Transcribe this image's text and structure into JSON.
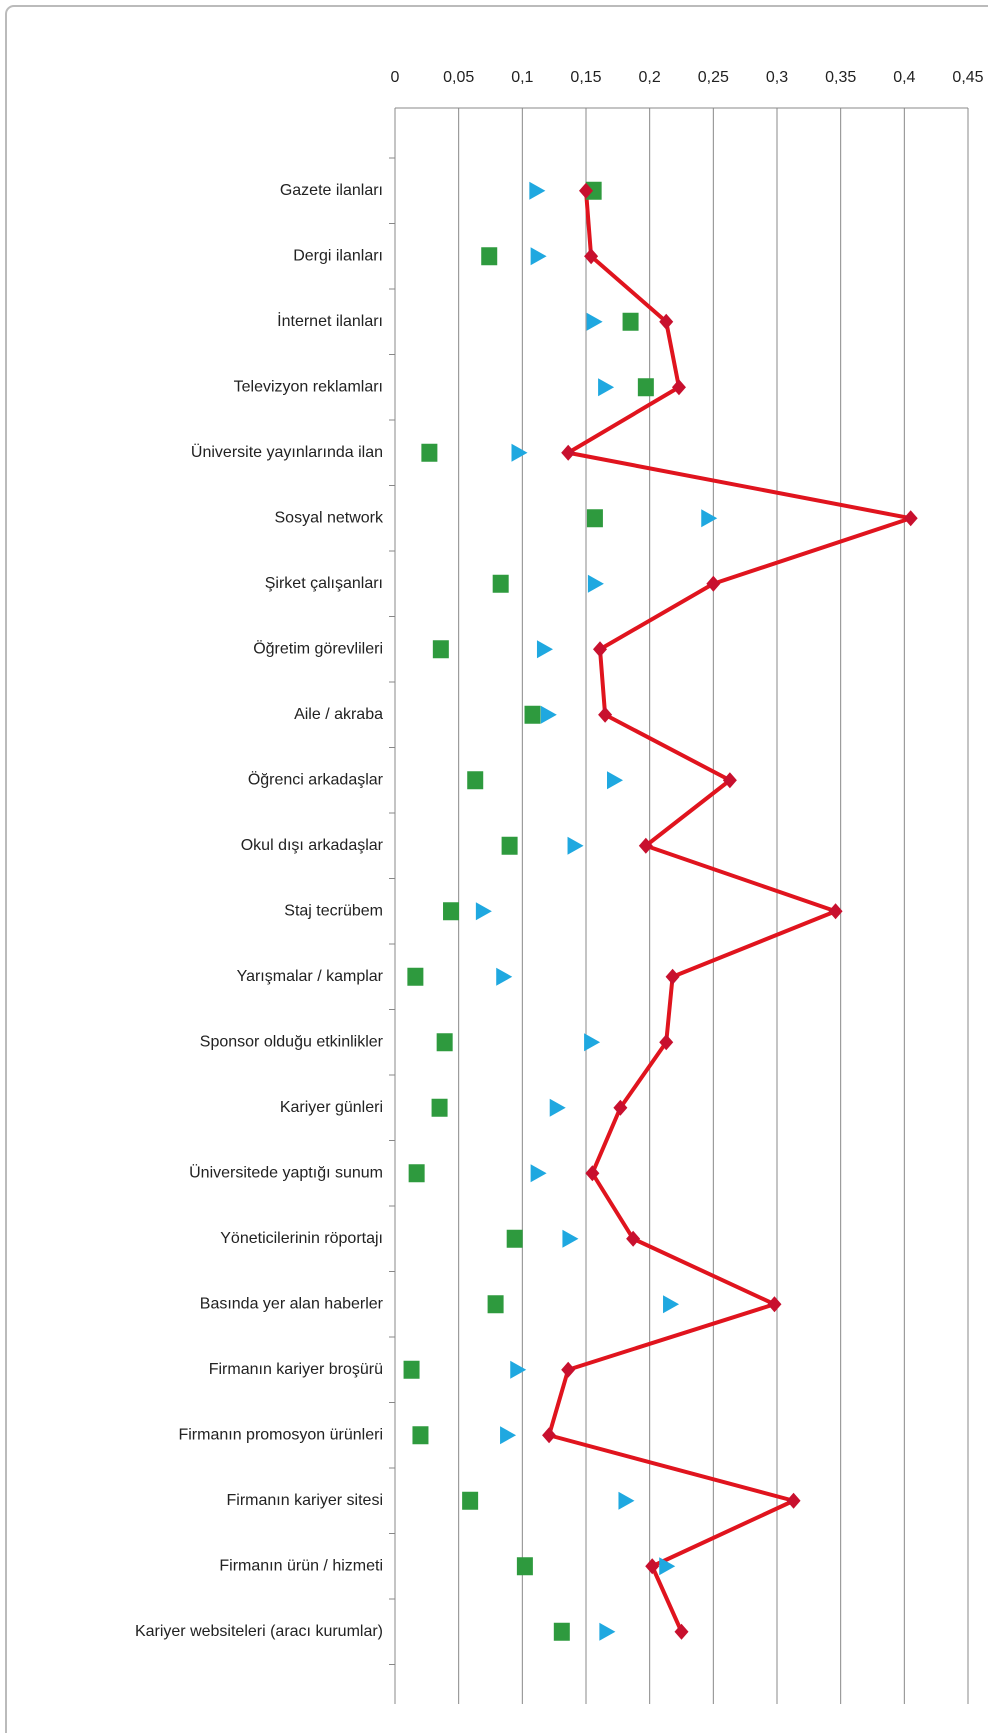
{
  "chart_data": {
    "type": "line-dot",
    "categories": [
      "Gazete ilanları",
      "Dergi ilanları",
      "İnternet ilanları",
      "Televizyon reklamları",
      "Üniversite yayınlarında ilan",
      "Sosyal network",
      "Şirket çalışanları",
      "Öğretim görevlileri",
      "Aile / akraba",
      "Öğrenci arkadaşlar",
      "Okul dışı arkadaşlar",
      "Staj tecrübem",
      "Yarışmalar / kamplar",
      "Sponsor olduğu etkinlikler",
      "Kariyer günleri",
      "Üniversitede yaptığı sunum",
      "Yöneticilerinin röportajı",
      "Basında yer alan haberler",
      "Firmanın kariyer broşürü",
      "Firmanın promosyon ürünleri",
      "Firmanın kariyer sitesi",
      "Firmanın ürün / hizmeti",
      "Kariyer websiteleri (aracı kurumlar)"
    ],
    "series": [
      {
        "color": "#e0141e",
        "marker": "diamond",
        "line": true,
        "values": [
          0.15,
          0.154,
          0.213,
          0.223,
          0.136,
          0.405,
          0.25,
          0.161,
          0.165,
          0.263,
          0.197,
          0.346,
          0.218,
          0.213,
          0.177,
          0.155,
          0.187,
          0.298,
          0.136,
          0.121,
          0.313,
          0.202,
          0.225
        ]
      },
      {
        "color": "#2e9a3e",
        "marker": "square",
        "line": false,
        "values": [
          0.156,
          0.074,
          0.185,
          0.197,
          0.027,
          0.157,
          0.083,
          0.036,
          0.108,
          0.063,
          0.09,
          0.044,
          0.016,
          0.039,
          0.035,
          0.017,
          0.094,
          0.079,
          0.013,
          0.02,
          0.059,
          0.102,
          0.131
        ]
      },
      {
        "color": "#1fa8e0",
        "marker": "triangle",
        "line": false,
        "values": [
          0.111,
          0.112,
          0.156,
          0.165,
          0.097,
          0.246,
          0.157,
          0.117,
          0.12,
          0.172,
          0.141,
          0.069,
          0.085,
          0.154,
          0.127,
          0.112,
          0.137,
          0.216,
          0.096,
          0.088,
          0.181,
          0.213,
          0.166
        ]
      }
    ],
    "xlim": [
      0,
      0.45
    ],
    "xticks": [
      0,
      {
        "value": 0.05,
        "label": "0,05"
      },
      {
        "value": 0.1,
        "label": "0,1"
      },
      {
        "value": 0.15,
        "label": "0,15"
      },
      {
        "value": 0.2,
        "label": "0,2"
      },
      {
        "value": 0.25,
        "label": "0,25"
      },
      {
        "value": 0.3,
        "label": "0,3"
      },
      {
        "value": 0.35,
        "label": "0,35"
      },
      {
        "value": 0.4,
        "label": "0,4"
      },
      {
        "value": 0.45,
        "label": "0,45"
      }
    ],
    "grid": true
  }
}
